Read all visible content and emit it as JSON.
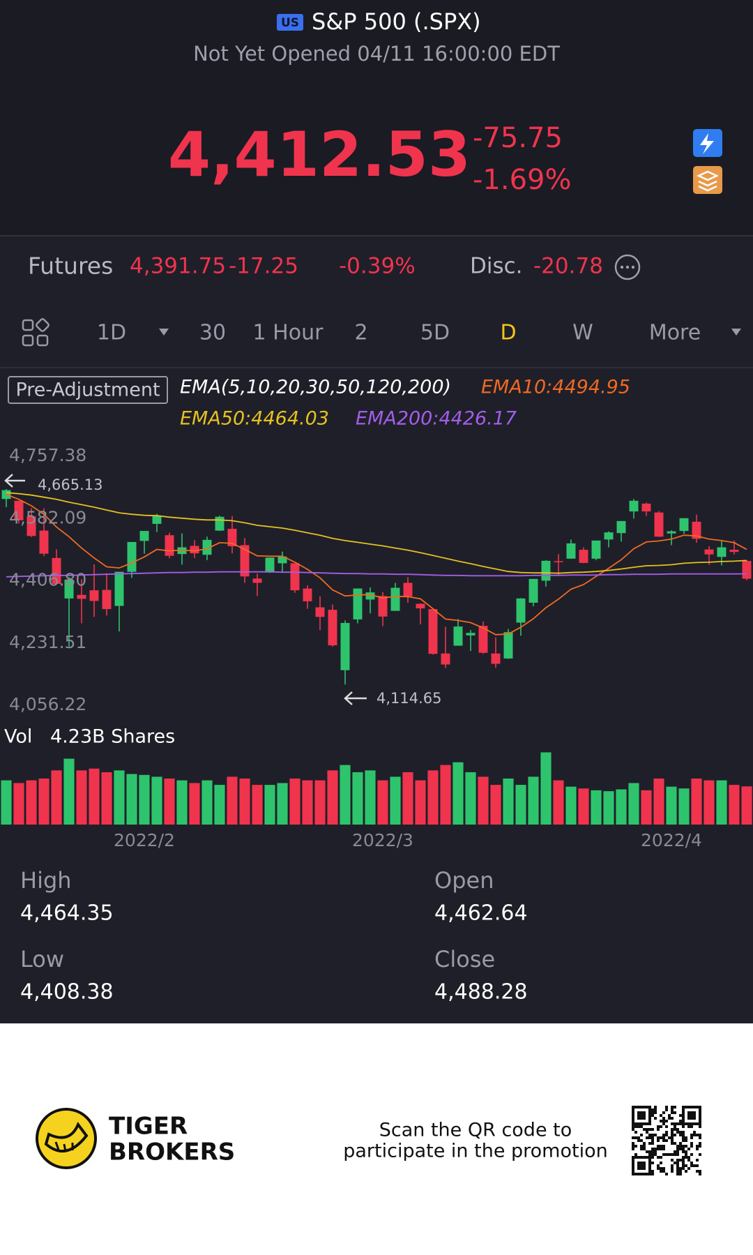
{
  "header": {
    "badge": "US",
    "title": "S&P 500 (.SPX)",
    "status": "Not Yet Opened 04/11 16:00:00 EDT"
  },
  "quote": {
    "price": "4,412.53",
    "change": "-75.75",
    "change_pct": "-1.69%"
  },
  "futures": {
    "label": "Futures",
    "price": "4,391.75",
    "change": "-17.25",
    "change_pct": "-0.39%",
    "disc_label": "Disc.",
    "disc": "-20.78"
  },
  "tabs": {
    "items": [
      "1D",
      "30",
      "1 Hour",
      "2",
      "5D",
      "D",
      "W",
      "More"
    ],
    "active": 5
  },
  "indicators": {
    "adjust": "Pre-Adjustment",
    "ema": "EMA(5,10,20,30,50,120,200)"
  },
  "chart_data": {
    "type": "candlestick",
    "categories": [
      null,
      null,
      null,
      null,
      null,
      null,
      null,
      null,
      null,
      null,
      null,
      "2022/2",
      null,
      null,
      null,
      null,
      null,
      null,
      null,
      null,
      null,
      null,
      null,
      null,
      null,
      null,
      null,
      null,
      null,
      null,
      "2022/3",
      null,
      null,
      null,
      null,
      null,
      null,
      null,
      null,
      null,
      null,
      null,
      null,
      null,
      null,
      null,
      null,
      null,
      null,
      null,
      null,
      null,
      null,
      "2022/4",
      null,
      null,
      null,
      null,
      null,
      null
    ],
    "ylim": [
      4056.22,
      4757.38
    ],
    "yticks": [
      {
        "value": 4757.38,
        "label": "4,757.38"
      },
      {
        "value": 4582.09,
        "label": "4,582.09"
      },
      {
        "value": 4406.8,
        "label": "4,406.80"
      },
      {
        "value": 4231.51,
        "label": "4,231.51"
      },
      {
        "value": 4056.22,
        "label": "4,056.22"
      }
    ],
    "grid": false,
    "up_color": "#2ec46d",
    "down_color": "#f0344d",
    "max_label": "4,665.13",
    "min_label": "4,114.65",
    "open": [
      4637,
      4632,
      4588,
      4548,
      4471,
      4357,
      4367,
      4380,
      4381,
      4336,
      4432,
      4519,
      4567,
      4535,
      4482,
      4505,
      4480,
      4548,
      4553,
      4507,
      4413,
      4430,
      4456,
      4456,
      4385,
      4332,
      4325,
      4155,
      4298,
      4354,
      4364,
      4322,
      4401,
      4342,
      4327,
      4202,
      4224,
      4253,
      4280,
      4202,
      4188,
      4289,
      4345,
      4407,
      4462,
      4469,
      4494,
      4469,
      4523,
      4541,
      4602,
      4624,
      4599,
      4540,
      4547,
      4573,
      4495,
      4474,
      4494,
      4462.64
    ],
    "high": [
      4665.13,
      4632,
      4611,
      4611,
      4495,
      4417,
      4411,
      4453,
      4428,
      4432,
      4516,
      4547,
      4595,
      4542,
      4540,
      4521,
      4531,
      4590,
      4589,
      4527,
      4427,
      4472,
      4489,
      4456,
      4394,
      4363,
      4340,
      4295,
      4385,
      4388,
      4375,
      4401,
      4417,
      4343,
      4328,
      4277,
      4299,
      4268,
      4292,
      4247,
      4271,
      4358,
      4412,
      4465,
      4482,
      4523,
      4501,
      4520,
      4546,
      4575,
      4637,
      4627,
      4603,
      4549,
      4583,
      4593,
      4504,
      4521,
      4520,
      4464.35
    ],
    "low": [
      4614,
      4568,
      4530,
      4476,
      4396,
      4222,
      4287,
      4305,
      4309,
      4264,
      4415,
      4483,
      4544,
      4470,
      4452,
      4471,
      4465,
      4547,
      4484,
      4401,
      4364,
      4429,
      4429,
      4373,
      4328,
      4268,
      4221,
      4114.65,
      4287,
      4315,
      4279,
      4322,
      4345,
      4284,
      4199,
      4161,
      4224,
      4209,
      4201,
      4162,
      4187,
      4252,
      4335,
      4390,
      4424,
      4469,
      4456,
      4465,
      4501,
      4517,
      4582,
      4589,
      4530,
      4507,
      4539,
      4514,
      4452,
      4450,
      4481,
      4408.38
    ],
    "close": [
      4662,
      4577,
      4533,
      4483,
      4398,
      4410,
      4356,
      4350,
      4327,
      4432,
      4516,
      4547,
      4590,
      4477,
      4501,
      4484,
      4522,
      4587,
      4504,
      4419,
      4401,
      4472,
      4475,
      4380,
      4349,
      4305,
      4225,
      4288,
      4385,
      4374,
      4306,
      4387,
      4363,
      4329,
      4201,
      4171,
      4278,
      4260,
      4204,
      4173,
      4262,
      4357,
      4412,
      4463,
      4461,
      4512,
      4457,
      4520,
      4543,
      4575,
      4632,
      4602,
      4531,
      4546,
      4583,
      4525,
      4481,
      4501,
      4488,
      4412.53
    ],
    "ema": [
      {
        "label": "EMA10:4494.95",
        "color": "#f06a22",
        "values": [
          4650,
          4636,
          4618,
          4594,
          4558,
          4531,
          4499,
          4471,
          4446,
          4443,
          4457,
          4474,
          4495,
          4491,
          4493,
          4491,
          4497,
          4514,
          4512,
          4495,
          4477,
          4476,
          4476,
          4459,
          4439,
          4415,
          4381,
          4364,
          4367,
          4368,
          4358,
          4363,
          4362,
          4356,
          4328,
          4299,
          4295,
          4289,
          4274,
          4255,
          4257,
          4276,
          4300,
          4331,
          4355,
          4383,
          4396,
          4419,
          4442,
          4466,
          4497,
          4516,
          4519,
          4524,
          4535,
          4533,
          4524,
          4520,
          4514,
          4494.95
        ]
      },
      {
        "label": "EMA50:4464.03",
        "color": "#e5c120",
        "values": [
          4655,
          4652,
          4648,
          4642,
          4636,
          4628,
          4621,
          4614,
          4606,
          4598,
          4594,
          4591,
          4590,
          4586,
          4583,
          4580,
          4578,
          4578,
          4576,
          4570,
          4563,
          4559,
          4555,
          4549,
          4542,
          4535,
          4526,
          4520,
          4515,
          4510,
          4505,
          4499,
          4493,
          4486,
          4478,
          4470,
          4462,
          4455,
          4447,
          4440,
          4433,
          4430,
          4429,
          4429,
          4428,
          4430,
          4431,
          4433,
          4436,
          4440,
          4445,
          4449,
          4450,
          4452,
          4456,
          4458,
          4459,
          4461,
          4462,
          4464.03
        ]
      },
      {
        "label": "EMA200:4426.17",
        "color": "#a25ee8",
        "values": [
          4418,
          4419,
          4420,
          4421,
          4422,
          4422,
          4423,
          4424,
          4425,
          4426,
          4427,
          4428,
          4429,
          4430,
          4430,
          4431,
          4431,
          4432,
          4432,
          4432,
          4432,
          4432,
          4431,
          4431,
          4430,
          4429,
          4428,
          4427,
          4427,
          4426,
          4426,
          4425,
          4425,
          4424,
          4423,
          4422,
          4422,
          4421,
          4421,
          4421,
          4421,
          4421,
          4422,
          4422,
          4422,
          4423,
          4423,
          4423,
          4424,
          4424,
          4425,
          4425,
          4425,
          4426,
          4426,
          4426,
          4426,
          4426,
          4426,
          4426.17
        ]
      }
    ],
    "volume": {
      "label": "Vol",
      "current": "4.23B Shares",
      "ylim": [
        0,
        8.5
      ],
      "values": [
        4.9,
        4.6,
        4.9,
        5.1,
        6.0,
        7.3,
        6.0,
        6.2,
        5.8,
        6.0,
        5.6,
        5.5,
        5.3,
        5.1,
        4.9,
        4.6,
        4.9,
        4.4,
        5.3,
        5.1,
        4.4,
        4.4,
        4.6,
        5.1,
        4.9,
        4.9,
        6.0,
        6.6,
        5.8,
        6.0,
        4.9,
        5.3,
        5.8,
        4.9,
        6.0,
        6.6,
        6.9,
        5.8,
        5.3,
        4.4,
        5.1,
        4.4,
        5.3,
        8.0,
        4.9,
        4.2,
        4.0,
        3.8,
        3.7,
        3.9,
        4.6,
        3.8,
        5.1,
        4.2,
        4.0,
        5.1,
        4.9,
        4.9,
        4.4,
        4.23
      ]
    }
  },
  "stats": [
    {
      "label": "High",
      "value": "4,464.35"
    },
    {
      "label": "Open",
      "value": "4,462.64"
    },
    {
      "label": "Low",
      "value": "4,408.38"
    },
    {
      "label": "Close",
      "value": "4,488.28"
    }
  ],
  "footer": {
    "brand": [
      "TIGER",
      "BROKERS"
    ],
    "promo": [
      "Scan the QR code to",
      "participate in the promotion"
    ]
  }
}
